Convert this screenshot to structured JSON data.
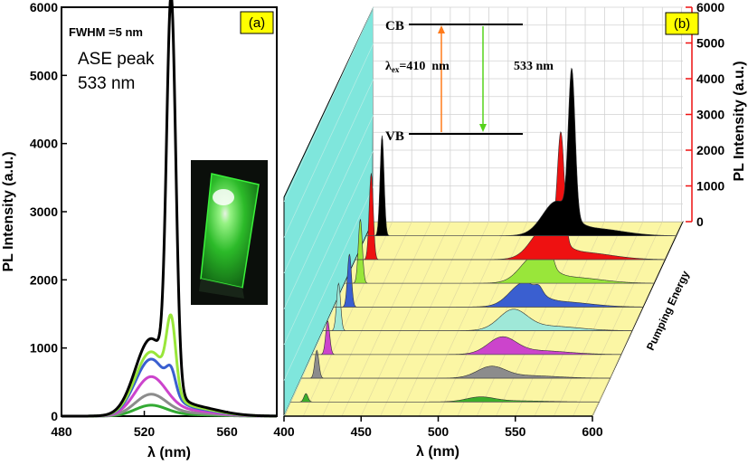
{
  "chart_data": [
    {
      "panel": "a",
      "type": "line",
      "panel_label": "(a)",
      "annotations": {
        "fwhm": "FWHM =5 nm",
        "ase_line1": "ASE peak",
        "ase_line2": "533 nm"
      },
      "xlabel": "λ (nm)",
      "ylabel": "PL Intensity (a.u.)",
      "xlim": [
        480,
        584
      ],
      "ylim": [
        0,
        6000
      ],
      "x_ticks": [
        480,
        520,
        560
      ],
      "y_ticks": [
        0,
        1000,
        2000,
        3000,
        4000,
        5000,
        6000
      ],
      "inset_photo": "green-luminescent-film-photo",
      "series": [
        {
          "color": "#33aa33",
          "peak_wavelength": 523,
          "peak_intensity": 150,
          "spike_intensity": 0
        },
        {
          "color": "#8c8c8c",
          "peak_wavelength": 523,
          "peak_intensity": 300,
          "spike_intensity": 0
        },
        {
          "color": "#cc44cc",
          "peak_wavelength": 523,
          "peak_intensity": 540,
          "spike_intensity": 0
        },
        {
          "color": "#3a5fd0",
          "peak_wavelength": 523,
          "peak_intensity": 780,
          "spike_intensity": 300
        },
        {
          "color": "#99e63a",
          "peak_wavelength": 523,
          "peak_intensity": 880,
          "spike_intensity": 1000
        },
        {
          "color": "#000000",
          "peak_wavelength": 523,
          "peak_intensity": 1060,
          "spike_intensity": 5600
        }
      ],
      "spike_wavelength": 533
    },
    {
      "panel": "b",
      "type": "area",
      "panel_label": "(b)",
      "xlabel": "λ (nm)",
      "ylabel": "PL Intensity (a.u.)",
      "depth_label": "Pumping Energy",
      "xlim": [
        400,
        600
      ],
      "ylim": [
        0,
        6000
      ],
      "x_ticks": [
        400,
        450,
        500,
        550,
        600
      ],
      "y_ticks": [
        0,
        1000,
        2000,
        3000,
        4000,
        5000,
        6000
      ],
      "series": [
        {
          "color": "#3cae2a",
          "laser": 300,
          "broad": 160,
          "spike": 0
        },
        {
          "color": "#8c8c8c",
          "laser": 1000,
          "broad": 380,
          "spike": 0
        },
        {
          "color": "#cc44cc",
          "laser": 1200,
          "broad": 560,
          "spike": 0
        },
        {
          "color": "#9fe8d8",
          "laser": 1700,
          "broad": 680,
          "spike": 0
        },
        {
          "color": "#3a5fd0",
          "laser": 1900,
          "broad": 780,
          "spike": 200
        },
        {
          "color": "#99e63a",
          "laser": 2300,
          "broad": 880,
          "spike": 600
        },
        {
          "color": "#ee1111",
          "laser": 3100,
          "broad": 1050,
          "spike": 3800
        },
        {
          "color": "#000000",
          "laser": 3600,
          "broad": 1100,
          "spike": 5200
        }
      ],
      "laser_wavelength": 410,
      "broad_wavelength": 523,
      "spike_wavelength": 533,
      "energy_diagram": {
        "cb": "CB",
        "vb": "VB",
        "excitation": "λex=410  nm",
        "excitation_symbol": "λ",
        "excitation_sub": "ex",
        "excitation_value": "=410  nm",
        "emission": "533 nm"
      }
    }
  ]
}
